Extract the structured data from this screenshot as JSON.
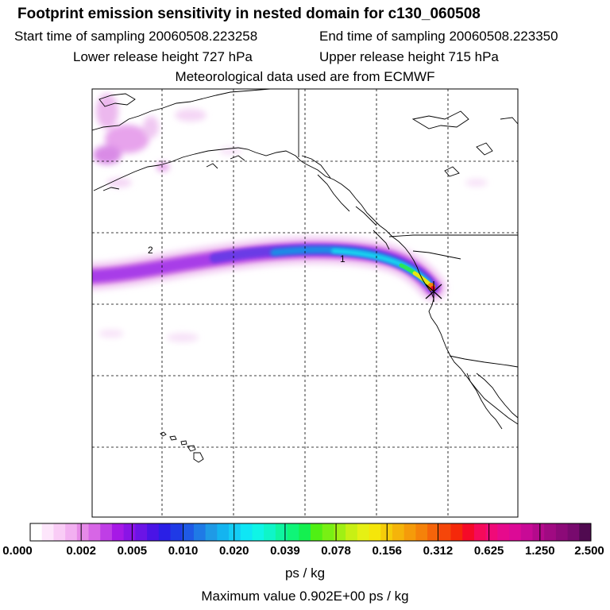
{
  "header": {
    "title": "Footprint emission sensitivity in nested domain for c130_060508",
    "start_time": "Start time of sampling 20060508.223258",
    "end_time": "End time of sampling 20060508.223350",
    "lower_height": "Lower release height  727 hPa",
    "upper_height": "Upper release height  715 hPa",
    "met_data": "Meteorological data used are from ECMWF"
  },
  "map": {
    "labels": [
      {
        "text": "2",
        "lat": 39.9,
        "lon": -156.4
      },
      {
        "text": "1",
        "lat": 38.6,
        "lon": -129.1
      }
    ],
    "release_marker": {
      "lat": 36.8,
      "lon": -122.2
    },
    "plume_color_scale_note": "white-pink-purple-blue-cyan-green-yellow-red-magenta"
  },
  "colorbar": {
    "tick_labels": [
      "0.000",
      "0.002",
      "0.005",
      "0.010",
      "0.020",
      "0.039",
      "0.078",
      "0.156",
      "0.312",
      "0.625",
      "1.250",
      "2.500"
    ],
    "colors": [
      "#ffffff",
      "#fde6fb",
      "#f9ccf6",
      "#f2b0f1",
      "#e68ae8",
      "#d766e6",
      "#bf3ee6",
      "#a619e6",
      "#8a14e6",
      "#6b14e6",
      "#4a14e6",
      "#2a1fe6",
      "#1f3ae6",
      "#1f5ae6",
      "#1f7ae6",
      "#1f9ae6",
      "#14b4f0",
      "#14cdf5",
      "#0fe6f5",
      "#0ff5e6",
      "#0ff5c8",
      "#0ff5a0",
      "#0ff578",
      "#14f050",
      "#50f014",
      "#78f014",
      "#a0f014",
      "#c8f014",
      "#e6f014",
      "#f5e60a",
      "#f5cd0a",
      "#f5b40a",
      "#f59b0a",
      "#f5820a",
      "#f5640a",
      "#f5460a",
      "#f5280a",
      "#f50a28",
      "#f50a5a",
      "#f00a78",
      "#e60a8c",
      "#dc0a96",
      "#c80a96",
      "#b40a8c",
      "#a00a82",
      "#8c0a78",
      "#780a6e",
      "#500a50"
    ],
    "units": "ps / kg",
    "max_value_text": "Maximum value  0.902E+00 ps / kg"
  }
}
